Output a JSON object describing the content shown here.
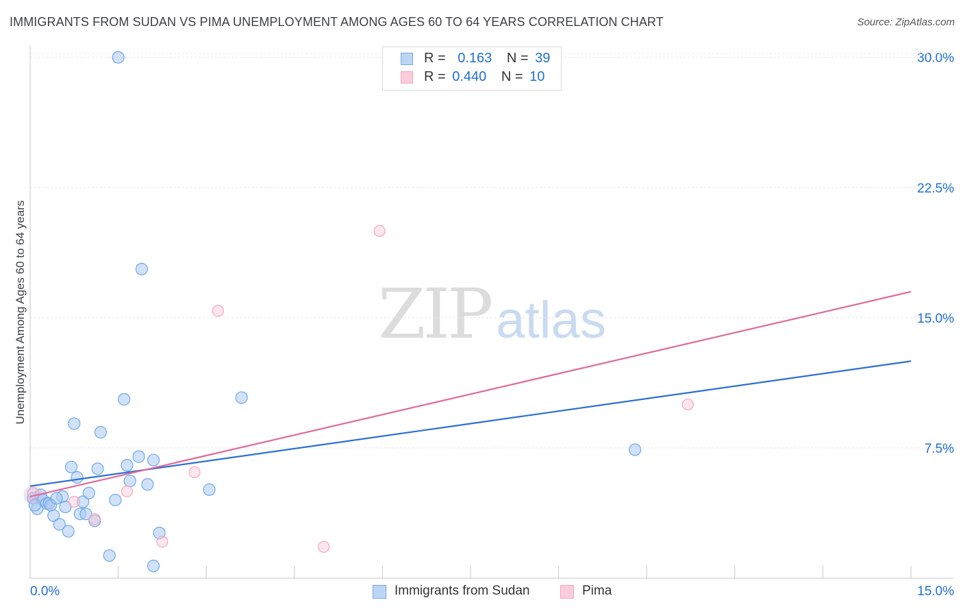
{
  "title": "IMMIGRANTS FROM SUDAN VS PIMA UNEMPLOYMENT AMONG AGES 60 TO 64 YEARS CORRELATION CHART",
  "source": "Source: ZipAtlas.com",
  "watermark": {
    "zip": "ZIP",
    "atlas": "atlas"
  },
  "colors": {
    "blue": "#6fa8e8",
    "blue_line": "#2a6fd4",
    "pink": "#f3a6bf",
    "pink_line": "#e0699a",
    "tick_text": "#1f6fd0"
  },
  "legend": {
    "rows": [
      {
        "r_label": "R =",
        "r_value": "0.163",
        "n_label": "N =",
        "n_value": "39"
      },
      {
        "r_label": "R =",
        "r_value": "0.440",
        "n_label": "N =",
        "n_value": "10"
      }
    ]
  },
  "chart_data": {
    "type": "scatter",
    "title": "IMMIGRANTS FROM SUDAN VS PIMA UNEMPLOYMENT AMONG AGES 60 TO 64 YEARS CORRELATION CHART",
    "xlabel": "",
    "ylabel": "Unemployment Among Ages 60 to 64 years",
    "xlim": [
      0,
      15
    ],
    "ylim": [
      0,
      30.7
    ],
    "x_tick_labels": [
      "0.0%",
      "15.0%"
    ],
    "y_ticks": [
      7.5,
      15.0,
      22.5,
      30.0
    ],
    "y_tick_labels": [
      "7.5%",
      "15.0%",
      "22.5%",
      "30.0%"
    ],
    "grid": true,
    "legend_position": "top-center",
    "series": [
      {
        "name": "Immigrants from Sudan",
        "color": "#6fa8e8",
        "trend": {
          "x": [
            0,
            15
          ],
          "y": [
            5.3,
            12.5
          ]
        },
        "points": [
          [
            0.05,
            4.6
          ],
          [
            0.12,
            4.0
          ],
          [
            0.18,
            4.8
          ],
          [
            0.22,
            4.5
          ],
          [
            0.28,
            4.3
          ],
          [
            0.32,
            4.3
          ],
          [
            0.4,
            3.6
          ],
          [
            0.5,
            3.1
          ],
          [
            0.55,
            4.7
          ],
          [
            0.6,
            4.1
          ],
          [
            0.65,
            2.7
          ],
          [
            0.7,
            6.4
          ],
          [
            0.75,
            8.9
          ],
          [
            0.8,
            5.8
          ],
          [
            0.85,
            3.7
          ],
          [
            0.9,
            4.4
          ],
          [
            0.95,
            3.7
          ],
          [
            1.0,
            4.9
          ],
          [
            1.1,
            3.3
          ],
          [
            1.15,
            6.3
          ],
          [
            1.2,
            8.4
          ],
          [
            1.35,
            1.3
          ],
          [
            1.45,
            4.5
          ],
          [
            1.5,
            30.0
          ],
          [
            1.6,
            10.3
          ],
          [
            1.65,
            6.5
          ],
          [
            1.7,
            5.6
          ],
          [
            1.85,
            7.0
          ],
          [
            1.9,
            17.8
          ],
          [
            2.0,
            5.4
          ],
          [
            2.1,
            6.8
          ],
          [
            2.1,
            0.7
          ],
          [
            2.2,
            2.6
          ],
          [
            3.05,
            5.1
          ],
          [
            3.6,
            10.4
          ],
          [
            10.3,
            7.4
          ],
          [
            0.08,
            4.2
          ],
          [
            0.35,
            4.2
          ],
          [
            0.45,
            4.6
          ]
        ]
      },
      {
        "name": "Pima",
        "color": "#f3a6bf",
        "trend": {
          "x": [
            0,
            15
          ],
          "y": [
            4.7,
            16.5
          ]
        },
        "points": [
          [
            0.05,
            4.9
          ],
          [
            0.75,
            4.4
          ],
          [
            1.1,
            3.4
          ],
          [
            1.65,
            5.0
          ],
          [
            2.25,
            2.1
          ],
          [
            2.8,
            6.1
          ],
          [
            3.2,
            15.4
          ],
          [
            5.0,
            1.8
          ],
          [
            5.95,
            20.0
          ],
          [
            11.2,
            10.0
          ]
        ]
      }
    ]
  }
}
